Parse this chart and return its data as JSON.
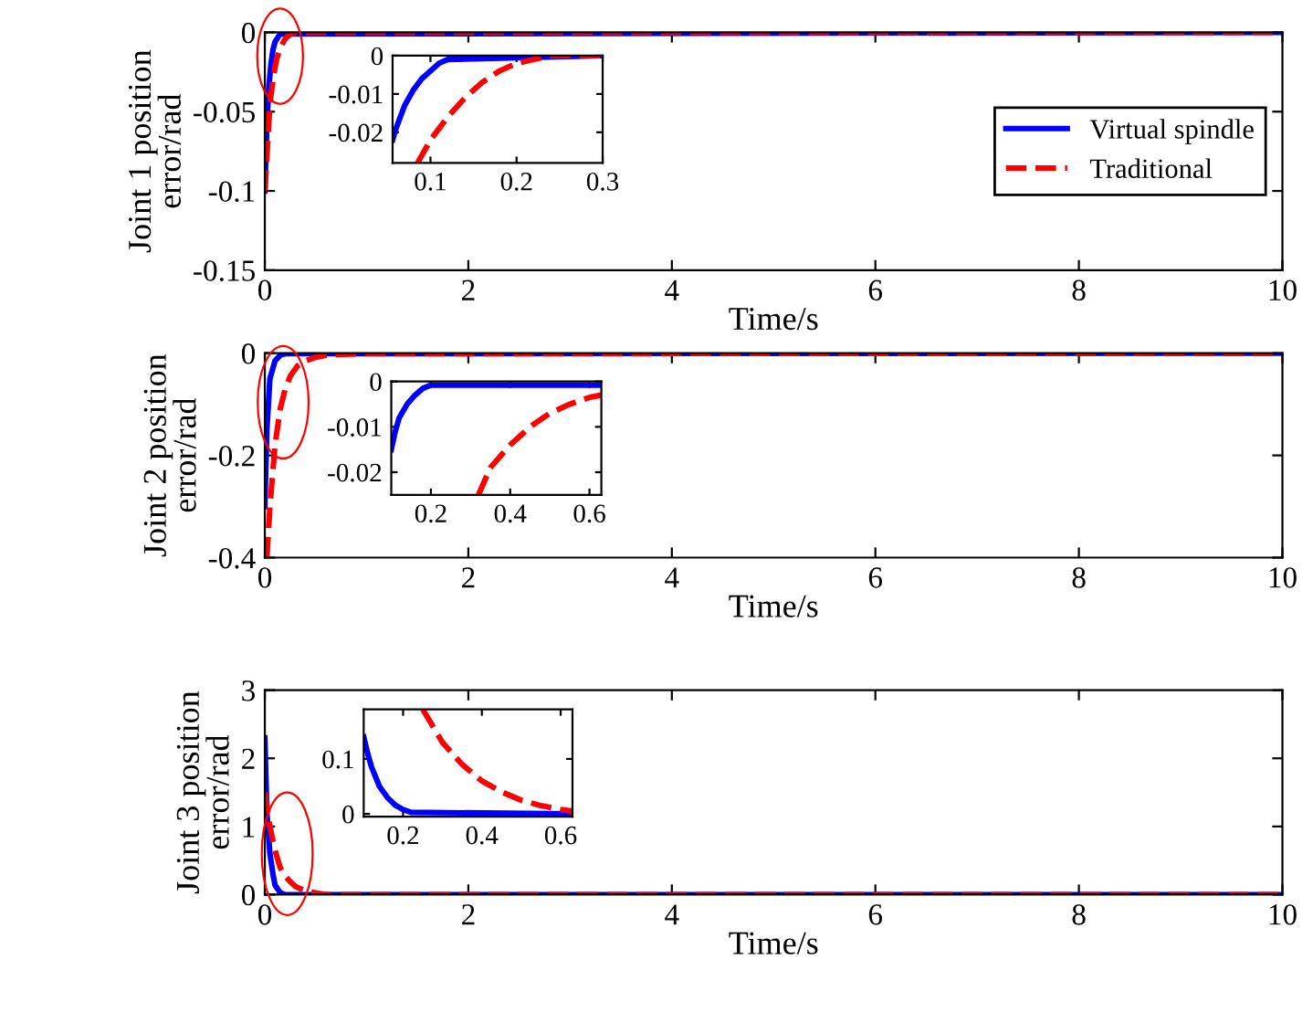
{
  "chart_data": [
    {
      "type": "line",
      "xlabel": "Time/s",
      "ylabel": "Joint 1 position\nerror/rad",
      "xlim": [
        0,
        10
      ],
      "xticks": [
        0,
        2,
        4,
        6,
        8,
        10
      ],
      "ylim": [
        -0.15,
        0
      ],
      "yticks": [
        0,
        -0.05,
        -0.1,
        -0.15
      ],
      "legend": "center right",
      "grid": false,
      "marker": "none",
      "series": [
        {
          "name": "Virtual spindle",
          "color": "#0000ff",
          "line_style": "solid",
          "x": [
            0,
            0.02,
            0.04,
            0.06,
            0.08,
            0.1,
            0.15,
            10
          ],
          "values": [
            -0.1,
            -0.058,
            -0.034,
            -0.02,
            -0.011,
            -0.006,
            -0.001,
            0
          ]
        },
        {
          "name": "Traditional",
          "color": "#ff0000",
          "line_style": "dashed",
          "x": [
            0,
            0.05,
            0.08,
            0.1,
            0.12,
            0.15,
            0.2,
            0.25,
            0.3,
            10
          ],
          "values": [
            -0.1,
            -0.045,
            -0.03,
            -0.022,
            -0.016,
            -0.01,
            -0.004,
            -0.001,
            0,
            0
          ]
        }
      ]
    },
    {
      "type": "line",
      "xlim": [
        0.056,
        0.3
      ],
      "xticks": [
        0.1,
        0.2,
        0.3
      ],
      "ylim": [
        -0.028,
        0
      ],
      "yticks": [
        0,
        -0.01,
        -0.02
      ],
      "grid": false,
      "marker": "none",
      "series": [
        {
          "color": "#0000ff",
          "line_style": "solid",
          "x": [
            0.056,
            0.06,
            0.07,
            0.08,
            0.09,
            0.1,
            0.11,
            0.12,
            0.3
          ],
          "values": [
            -0.022,
            -0.019,
            -0.013,
            -0.009,
            -0.006,
            -0.004,
            -0.002,
            -0.001,
            0
          ]
        },
        {
          "color": "#ff0000",
          "line_style": "dashed",
          "x": [
            0.085,
            0.1,
            0.12,
            0.14,
            0.16,
            0.18,
            0.2,
            0.22,
            0.24,
            0.3
          ],
          "values": [
            -0.028,
            -0.022,
            -0.016,
            -0.011,
            -0.007,
            -0.004,
            -0.002,
            -0.001,
            0,
            0
          ]
        }
      ]
    },
    {
      "type": "line",
      "xlabel": "Time/s",
      "ylabel": "Joint 2 position\nerror/rad",
      "xlim": [
        0,
        10
      ],
      "xticks": [
        0,
        2,
        4,
        6,
        8,
        10
      ],
      "ylim": [
        -0.4,
        0
      ],
      "yticks": [
        0,
        -0.2,
        -0.4
      ],
      "grid": false,
      "marker": "none",
      "series": [
        {
          "color": "#0000ff",
          "line_style": "solid",
          "x": [
            0,
            0.02,
            0.05,
            0.1,
            0.15,
            0.2,
            10
          ],
          "values": [
            -0.3,
            -0.15,
            -0.05,
            -0.015,
            -0.004,
            -0.001,
            0
          ]
        },
        {
          "color": "#ff0000",
          "line_style": "dashed",
          "x": [
            0.02,
            0.05,
            0.1,
            0.15,
            0.2,
            0.25,
            0.32,
            0.4,
            0.5,
            0.63,
            1,
            10
          ],
          "values": [
            -0.4,
            -0.3,
            -0.18,
            -0.11,
            -0.07,
            -0.045,
            -0.025,
            -0.015,
            -0.008,
            -0.003,
            -0.001,
            0
          ]
        }
      ]
    },
    {
      "type": "line",
      "xlim": [
        0.1,
        0.63
      ],
      "xticks": [
        0.2,
        0.4,
        0.6
      ],
      "ylim": [
        -0.025,
        0
      ],
      "yticks": [
        0,
        -0.01,
        -0.02
      ],
      "grid": false,
      "marker": "none",
      "series": [
        {
          "color": "#0000ff",
          "line_style": "solid",
          "x": [
            0.1,
            0.11,
            0.12,
            0.14,
            0.16,
            0.18,
            0.2,
            0.63
          ],
          "values": [
            -0.015,
            -0.011,
            -0.008,
            -0.005,
            -0.003,
            -0.0015,
            -0.0008,
            -0.0008
          ]
        },
        {
          "color": "#ff0000",
          "line_style": "dashed",
          "x": [
            0.32,
            0.35,
            0.4,
            0.45,
            0.5,
            0.55,
            0.6,
            0.63
          ],
          "values": [
            -0.025,
            -0.019,
            -0.014,
            -0.01,
            -0.007,
            -0.005,
            -0.0035,
            -0.003
          ]
        }
      ]
    },
    {
      "type": "line",
      "xlabel": "Time/s",
      "ylabel": "Joint 3 position\nerror/rad",
      "xlim": [
        0,
        10
      ],
      "xticks": [
        0,
        2,
        4,
        6,
        8,
        10
      ],
      "ylim": [
        0,
        3
      ],
      "yticks": [
        0,
        1,
        2,
        3
      ],
      "grid": false,
      "marker": "none",
      "series": [
        {
          "color": "#0000ff",
          "line_style": "solid",
          "x": [
            0,
            0.02,
            0.05,
            0.08,
            0.1,
            0.15,
            0.2,
            10
          ],
          "values": [
            2.3,
            1.2,
            0.6,
            0.3,
            0.14,
            0.03,
            0,
            0
          ]
        },
        {
          "color": "#ff0000",
          "line_style": "dashed",
          "x": [
            0,
            0.05,
            0.1,
            0.15,
            0.2,
            0.25,
            0.3,
            0.4,
            0.6,
            10
          ],
          "values": [
            1.5,
            1.0,
            0.65,
            0.4,
            0.27,
            0.19,
            0.12,
            0.05,
            0,
            0
          ]
        }
      ]
    },
    {
      "type": "line",
      "xlim": [
        0.1,
        0.63
      ],
      "xticks": [
        0.2,
        0.4,
        0.6
      ],
      "ylim": [
        -0.005,
        0.19
      ],
      "yticks": [
        0,
        0.1
      ],
      "grid": false,
      "marker": "none",
      "series": [
        {
          "color": "#0000ff",
          "line_style": "solid",
          "x": [
            0.1,
            0.11,
            0.12,
            0.14,
            0.16,
            0.18,
            0.2,
            0.22,
            0.63
          ],
          "values": [
            0.14,
            0.11,
            0.085,
            0.05,
            0.03,
            0.016,
            0.008,
            0.003,
            0
          ]
        },
        {
          "color": "#ff0000",
          "line_style": "dashed",
          "x": [
            0.25,
            0.3,
            0.35,
            0.4,
            0.45,
            0.5,
            0.55,
            0.6,
            0.63
          ],
          "values": [
            0.19,
            0.13,
            0.09,
            0.06,
            0.04,
            0.025,
            0.015,
            0.008,
            0.005
          ]
        }
      ]
    }
  ]
}
